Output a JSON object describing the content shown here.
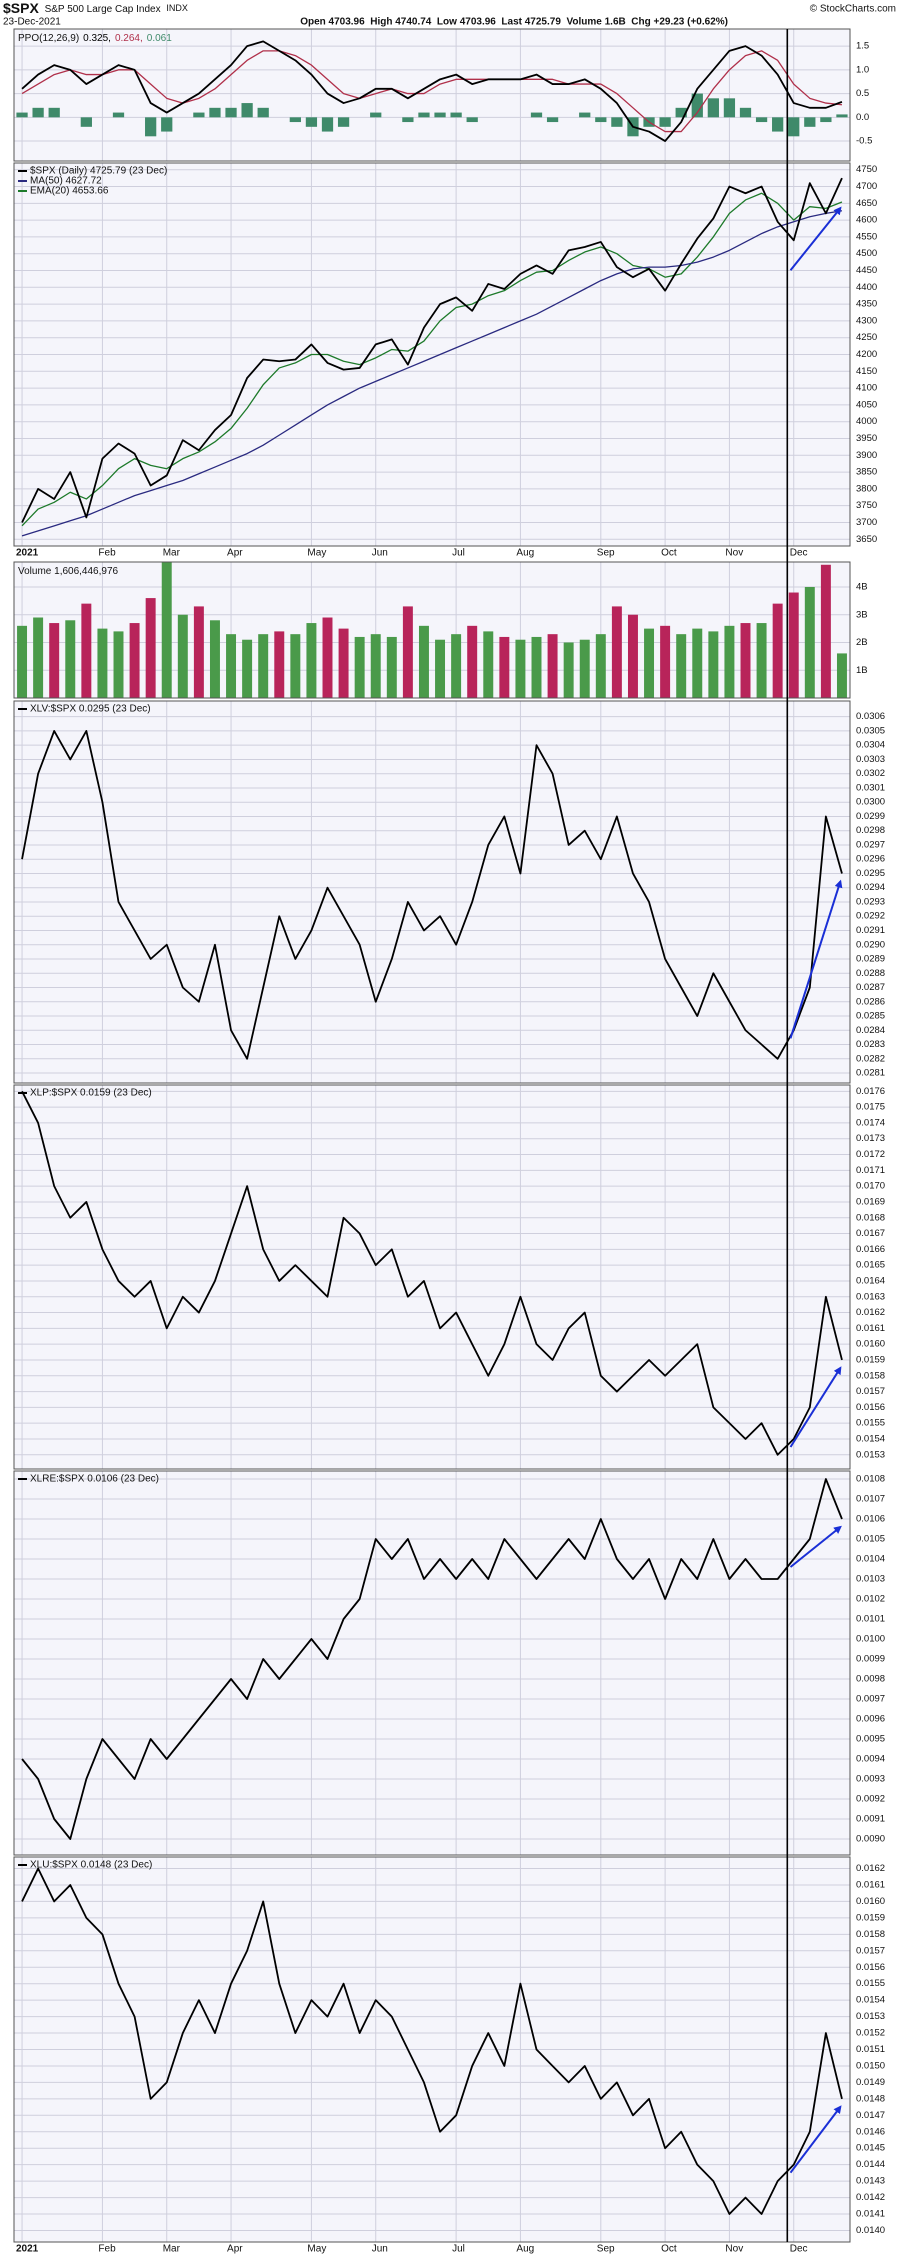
{
  "header": {
    "symbol": "$SPX",
    "name": "S&P 500 Large Cap Index",
    "exchange": "INDX",
    "date": "23-Dec-2021",
    "stats": "Open 4703.96  High 4740.74  Low 4703.96  Last 4725.79  Volume 1.6B  Chg +29.23 (+0.62%)",
    "source": "© StockCharts.com"
  },
  "chart_data": [
    {
      "type": "line",
      "title": "PPO(12,26,9)",
      "ylim": [
        -0.92,
        1.86
      ],
      "yticks": [
        1.5,
        {
          "value": 1,
          "label": "1.0"
        },
        0.5,
        {
          "value": 0,
          "label": "0.0"
        },
        -0.5
      ],
      "series": [
        {
          "name": "0.325,",
          "color": "#000000",
          "values": [
            0.6,
            0.9,
            1.1,
            1.0,
            0.7,
            0.9,
            1.1,
            1.0,
            0.3,
            0.1,
            0.3,
            0.5,
            0.8,
            1.1,
            1.5,
            1.6,
            1.4,
            1.2,
            0.9,
            0.5,
            0.3,
            0.4,
            0.6,
            0.6,
            0.4,
            0.6,
            0.8,
            0.9,
            0.7,
            0.8,
            0.8,
            0.8,
            0.9,
            0.7,
            0.7,
            0.8,
            0.6,
            0.3,
            -0.2,
            -0.3,
            -0.5,
            -0.1,
            0.6,
            1.0,
            1.4,
            1.5,
            1.3,
            0.9,
            0.3,
            0.2,
            0.2,
            0.325
          ]
        },
        {
          "name": "0.264,",
          "color": "#b0304a",
          "values": [
            0.5,
            0.7,
            0.9,
            1.0,
            0.9,
            0.9,
            1.0,
            1.0,
            0.7,
            0.4,
            0.3,
            0.4,
            0.6,
            0.9,
            1.2,
            1.4,
            1.4,
            1.3,
            1.1,
            0.8,
            0.5,
            0.4,
            0.5,
            0.6,
            0.5,
            0.5,
            0.7,
            0.8,
            0.8,
            0.8,
            0.8,
            0.8,
            0.8,
            0.8,
            0.7,
            0.7,
            0.7,
            0.5,
            0.2,
            -0.1,
            -0.3,
            -0.3,
            0.1,
            0.6,
            1.0,
            1.3,
            1.4,
            1.2,
            0.7,
            0.4,
            0.3,
            0.264
          ]
        },
        {
          "name": "0.061",
          "color": "#3f8a6a",
          "type": "bar",
          "values": [
            0.1,
            0.2,
            0.2,
            0.0,
            -0.2,
            0.0,
            0.1,
            0.0,
            -0.4,
            -0.3,
            0.0,
            0.1,
            0.2,
            0.2,
            0.3,
            0.2,
            0.0,
            -0.1,
            -0.2,
            -0.3,
            -0.2,
            0.0,
            0.1,
            0.0,
            -0.1,
            0.1,
            0.1,
            0.1,
            -0.1,
            0.0,
            0.0,
            0.0,
            0.1,
            -0.1,
            0.0,
            0.1,
            -0.1,
            -0.2,
            -0.4,
            -0.2,
            -0.2,
            0.2,
            0.5,
            0.4,
            0.4,
            0.2,
            -0.1,
            -0.3,
            -0.4,
            -0.2,
            -0.1,
            0.061
          ]
        }
      ]
    },
    {
      "type": "line",
      "ylim": [
        3630,
        4770
      ],
      "yticks": [
        3650,
        3700,
        3750,
        3800,
        3850,
        3900,
        3950,
        4000,
        4050,
        4100,
        4150,
        4200,
        4250,
        4300,
        4350,
        4400,
        4450,
        4500,
        4550,
        4600,
        4650,
        4700,
        4750
      ],
      "categories": [
        "2021",
        null,
        null,
        null,
        null,
        "Feb",
        null,
        null,
        null,
        "Mar",
        null,
        null,
        null,
        "Apr",
        null,
        null,
        null,
        null,
        "May",
        null,
        null,
        null,
        "Jun",
        null,
        null,
        null,
        null,
        "Jul",
        null,
        null,
        null,
        "Aug",
        null,
        null,
        null,
        null,
        "Sep",
        null,
        null,
        null,
        "Oct",
        null,
        null,
        null,
        "Nov",
        null,
        null,
        null,
        "Dec",
        null,
        null,
        null
      ],
      "series": [
        {
          "name": "$SPX (Daily) 4725.79 (23 Dec)",
          "color": "#000000",
          "values": [
            3700,
            3800,
            3770,
            3850,
            3715,
            3890,
            3935,
            3905,
            3810,
            3840,
            3945,
            3915,
            3975,
            4020,
            4130,
            4185,
            4180,
            4185,
            4230,
            4175,
            4155,
            4160,
            4230,
            4245,
            4170,
            4280,
            4350,
            4370,
            4330,
            4410,
            4395,
            4440,
            4465,
            4440,
            4510,
            4520,
            4535,
            4460,
            4430,
            4455,
            4390,
            4470,
            4545,
            4605,
            4700,
            4680,
            4700,
            4595,
            4540,
            4710,
            4620,
            4725
          ]
        },
        {
          "name": "MA(50) 4627.72",
          "color": "#2a2a80",
          "values": [
            3660,
            3675,
            3690,
            3705,
            3720,
            3740,
            3760,
            3780,
            3795,
            3810,
            3825,
            3845,
            3865,
            3885,
            3905,
            3930,
            3960,
            3990,
            4020,
            4050,
            4075,
            4100,
            4120,
            4140,
            4160,
            4180,
            4200,
            4220,
            4240,
            4260,
            4280,
            4300,
            4320,
            4345,
            4370,
            4395,
            4420,
            4440,
            4455,
            4460,
            4460,
            4465,
            4475,
            4490,
            4510,
            4535,
            4560,
            4580,
            4595,
            4610,
            4620,
            4628
          ]
        },
        {
          "name": "EMA(20) 4653.66",
          "color": "#1d7a2a",
          "values": [
            3690,
            3740,
            3760,
            3790,
            3770,
            3810,
            3860,
            3890,
            3870,
            3860,
            3890,
            3910,
            3940,
            3980,
            4040,
            4110,
            4160,
            4175,
            4200,
            4200,
            4180,
            4170,
            4190,
            4215,
            4210,
            4240,
            4300,
            4340,
            4350,
            4375,
            4390,
            4420,
            4445,
            4450,
            4480,
            4505,
            4520,
            4500,
            4465,
            4455,
            4430,
            4440,
            4490,
            4550,
            4620,
            4660,
            4680,
            4650,
            4600,
            4640,
            4635,
            4654
          ]
        }
      ]
    },
    {
      "type": "bar",
      "title": "Volume 1,606,446,976",
      "ylim": [
        0,
        4900000000
      ],
      "colors": {
        "up": "#4a9a4a",
        "down": "#b8245a"
      },
      "yticks": [
        {
          "value": 4000000000,
          "label": "4B"
        },
        {
          "value": 3000000000,
          "label": "3B"
        },
        {
          "value": 2000000000,
          "label": "2B"
        },
        {
          "value": 1000000000,
          "label": "1B"
        }
      ],
      "values": [
        2600000000,
        2900000000,
        2700000000,
        2800000000,
        3400000000,
        2500000000,
        2400000000,
        2700000000,
        3600000000,
        4900000000,
        3000000000,
        3300000000,
        2800000000,
        2300000000,
        2100000000,
        2300000000,
        2400000000,
        2300000000,
        2700000000,
        2900000000,
        2500000000,
        2200000000,
        2300000000,
        2200000000,
        3300000000,
        2600000000,
        2100000000,
        2300000000,
        2600000000,
        2400000000,
        2200000000,
        2100000000,
        2200000000,
        2300000000,
        2000000000,
        2100000000,
        2300000000,
        3300000000,
        3000000000,
        2500000000,
        2600000000,
        2300000000,
        2500000000,
        2400000000,
        2600000000,
        2700000000,
        2700000000,
        3400000000,
        3800000000,
        4000000000,
        4800000000,
        1606446976
      ]
    },
    {
      "type": "line",
      "ylim": [
        0.02803,
        0.03071
      ],
      "yticks": [
        0.0281,
        0.0282,
        0.0283,
        0.0284,
        0.0285,
        0.0286,
        0.0287,
        0.0288,
        0.0289,
        {
          "value": 0.029,
          "label": "0.0290"
        },
        0.0291,
        0.0292,
        0.0293,
        0.0294,
        0.0295,
        0.0296,
        0.0297,
        0.0298,
        0.0299,
        {
          "value": 0.03,
          "label": "0.0300"
        },
        0.0301,
        0.0302,
        0.0303,
        0.0304,
        0.0305,
        0.0306
      ],
      "series": [
        {
          "name": "XLV:$SPX 0.0295 (23 Dec)",
          "color": "#000000",
          "values": [
            0.0296,
            0.0302,
            0.0305,
            0.0303,
            0.0305,
            0.03,
            0.0293,
            0.0291,
            0.0289,
            0.029,
            0.0287,
            0.0286,
            0.029,
            0.0284,
            0.0282,
            0.0287,
            0.0292,
            0.0289,
            0.0291,
            0.0294,
            0.0292,
            0.029,
            0.0286,
            0.0289,
            0.0293,
            0.0291,
            0.0292,
            0.029,
            0.0293,
            0.0297,
            0.0299,
            0.0295,
            0.0304,
            0.0302,
            0.0297,
            0.0298,
            0.0296,
            0.0299,
            0.0295,
            0.0293,
            0.0289,
            0.0287,
            0.0285,
            0.0288,
            0.0286,
            0.0284,
            0.0283,
            0.0282,
            0.0284,
            0.0287,
            0.0299,
            0.0295
          ]
        }
      ]
    },
    {
      "type": "line",
      "ylim": [
        0.01521,
        0.01764
      ],
      "yticks": [
        0.0153,
        0.0154,
        0.0155,
        0.0156,
        0.0157,
        0.0158,
        0.0159,
        {
          "value": 0.016,
          "label": "0.0160"
        },
        0.0161,
        0.0162,
        0.0163,
        0.0164,
        0.0165,
        0.0166,
        0.0167,
        0.0168,
        0.0169,
        {
          "value": 0.017,
          "label": "0.0170"
        },
        0.0171,
        0.0172,
        0.0173,
        0.0174,
        0.0175,
        0.0176
      ],
      "series": [
        {
          "name": "XLP:$SPX 0.0159 (23 Dec)",
          "color": "#000000",
          "values": [
            0.0176,
            0.0174,
            0.017,
            0.0168,
            0.0169,
            0.0166,
            0.0164,
            0.0163,
            0.0164,
            0.0161,
            0.0163,
            0.0162,
            0.0164,
            0.0167,
            0.017,
            0.0166,
            0.0164,
            0.0165,
            0.0164,
            0.0163,
            0.0168,
            0.0167,
            0.0165,
            0.0166,
            0.0163,
            0.0164,
            0.0161,
            0.0162,
            0.016,
            0.0158,
            0.016,
            0.0163,
            0.016,
            0.0159,
            0.0161,
            0.0162,
            0.0158,
            0.0157,
            0.0158,
            0.0159,
            0.0158,
            0.0159,
            0.016,
            0.0156,
            0.0155,
            0.0154,
            0.0155,
            0.0153,
            0.0154,
            0.0156,
            0.0163,
            0.0159
          ]
        }
      ]
    },
    {
      "type": "line",
      "ylim": [
        0.00892,
        0.01084
      ],
      "yticks": [
        {
          "value": 0.009,
          "label": "0.0090"
        },
        0.0091,
        0.0092,
        0.0093,
        0.0094,
        0.0095,
        0.0096,
        0.0097,
        0.0098,
        0.0099,
        {
          "value": 0.01,
          "label": "0.0100"
        },
        0.0101,
        0.0102,
        0.0103,
        0.0104,
        0.0105,
        0.0106,
        0.0107,
        0.0108
      ],
      "series": [
        {
          "name": "XLRE:$SPX 0.0106 (23 Dec)",
          "color": "#000000",
          "values": [
            0.0094,
            0.0093,
            0.0091,
            0.009,
            0.0093,
            0.0095,
            0.0094,
            0.0093,
            0.0095,
            0.0094,
            0.0095,
            0.0096,
            0.0097,
            0.0098,
            0.0097,
            0.0099,
            0.0098,
            0.0099,
            0.01,
            0.0099,
            0.0101,
            0.0102,
            0.0105,
            0.0104,
            0.0105,
            0.0103,
            0.0104,
            0.0103,
            0.0104,
            0.0103,
            0.0105,
            0.0104,
            0.0103,
            0.0104,
            0.0105,
            0.0104,
            0.0106,
            0.0104,
            0.0103,
            0.0104,
            0.0102,
            0.0104,
            0.0103,
            0.0105,
            0.0103,
            0.0104,
            0.0103,
            0.0103,
            0.0104,
            0.0105,
            0.0108,
            0.0106
          ]
        }
      ]
    },
    {
      "type": "line",
      "ylim": [
        0.01393,
        0.01627
      ],
      "yticks": [
        {
          "value": 0.014,
          "label": "0.0140"
        },
        0.0141,
        0.0142,
        0.0143,
        0.0144,
        0.0145,
        0.0146,
        0.0147,
        0.0148,
        0.0149,
        {
          "value": 0.015,
          "label": "0.0150"
        },
        0.0151,
        0.0152,
        0.0153,
        0.0154,
        0.0155,
        0.0156,
        0.0157,
        0.0158,
        0.0159,
        {
          "value": 0.016,
          "label": "0.0160"
        },
        0.0161,
        0.0162
      ],
      "categories": [
        "2021",
        null,
        null,
        null,
        null,
        "Feb",
        null,
        null,
        null,
        "Mar",
        null,
        null,
        null,
        "Apr",
        null,
        null,
        null,
        null,
        "May",
        null,
        null,
        null,
        "Jun",
        null,
        null,
        null,
        null,
        "Jul",
        null,
        null,
        null,
        "Aug",
        null,
        null,
        null,
        null,
        "Sep",
        null,
        null,
        null,
        "Oct",
        null,
        null,
        null,
        "Nov",
        null,
        null,
        null,
        "Dec",
        null,
        null,
        null
      ],
      "series": [
        {
          "name": "XLU:$SPX 0.0148 (23 Dec)",
          "color": "#000000",
          "values": [
            0.016,
            0.0162,
            0.016,
            0.0161,
            0.0159,
            0.0158,
            0.0155,
            0.0153,
            0.0148,
            0.0149,
            0.0152,
            0.0154,
            0.0152,
            0.0155,
            0.0157,
            0.016,
            0.0155,
            0.0152,
            0.0154,
            0.0153,
            0.0155,
            0.0152,
            0.0154,
            0.0153,
            0.0151,
            0.0149,
            0.0146,
            0.0147,
            0.015,
            0.0152,
            0.015,
            0.0155,
            0.0151,
            0.015,
            0.0149,
            0.015,
            0.0148,
            0.0149,
            0.0147,
            0.0148,
            0.0145,
            0.0146,
            0.0144,
            0.0143,
            0.0141,
            0.0142,
            0.0141,
            0.0143,
            0.0144,
            0.0146,
            0.0152,
            0.0148
          ]
        }
      ]
    }
  ]
}
